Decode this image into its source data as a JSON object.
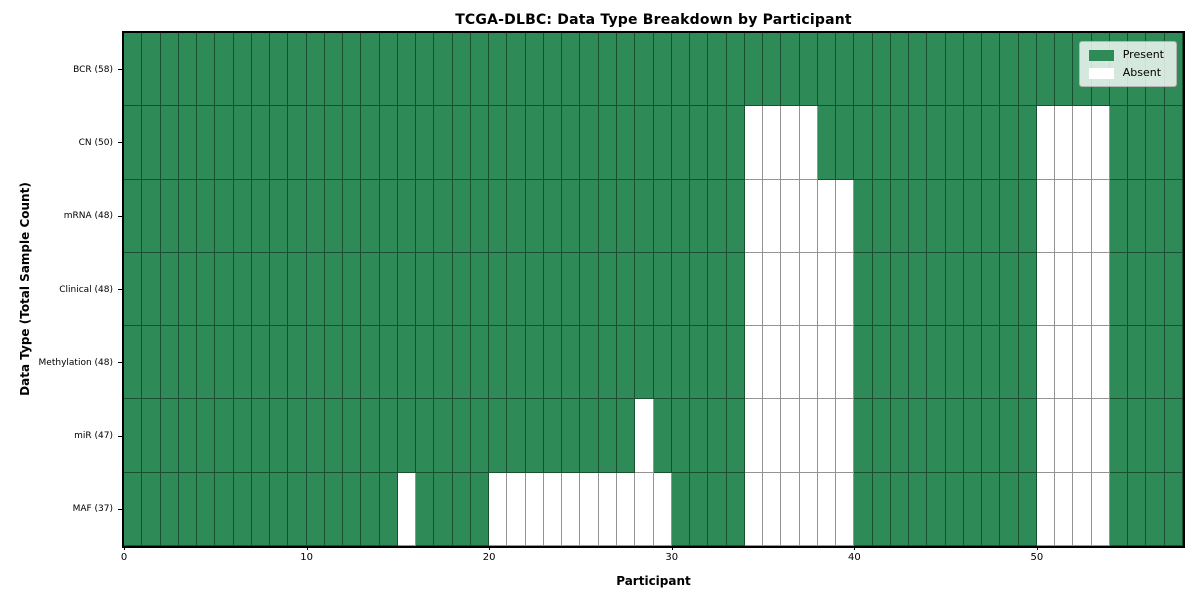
{
  "chart_data": {
    "type": "heatmap",
    "title": "TCGA-DLBC: Data Type Breakdown by Participant",
    "xlabel": "Participant",
    "ylabel": "Data Type (Total Sample Count)",
    "x_axis": {
      "n_columns": 58,
      "ticks": [
        0,
        10,
        20,
        30,
        40,
        50
      ]
    },
    "colors": {
      "present": "#2e8b57",
      "absent": "#ffffff",
      "grid_line": "rgba(0,0,0,0.42)"
    },
    "rows": [
      {
        "label": "BCR (58)",
        "data_type": "BCR",
        "total_sample_count": 58,
        "absent_participants": []
      },
      {
        "label": "CN (50)",
        "data_type": "CN",
        "total_sample_count": 50,
        "absent_participants": [
          34,
          35,
          36,
          37,
          50,
          51,
          52,
          53
        ]
      },
      {
        "label": "mRNA (48)",
        "data_type": "mRNA",
        "total_sample_count": 48,
        "absent_participants": [
          34,
          35,
          36,
          37,
          38,
          39,
          50,
          51,
          52,
          53
        ]
      },
      {
        "label": "Clinical (48)",
        "data_type": "Clinical",
        "total_sample_count": 48,
        "absent_participants": [
          34,
          35,
          36,
          37,
          38,
          39,
          50,
          51,
          52,
          53
        ]
      },
      {
        "label": "Methylation (48)",
        "data_type": "Methylation",
        "total_sample_count": 48,
        "absent_participants": [
          34,
          35,
          36,
          37,
          38,
          39,
          50,
          51,
          52,
          53
        ]
      },
      {
        "label": "miR (47)",
        "data_type": "miR",
        "total_sample_count": 47,
        "absent_participants": [
          28,
          34,
          35,
          36,
          37,
          38,
          39,
          50,
          51,
          52,
          53
        ]
      },
      {
        "label": "MAF (37)",
        "data_type": "MAF",
        "total_sample_count": 37,
        "absent_participants": [
          15,
          20,
          21,
          22,
          23,
          24,
          25,
          26,
          27,
          28,
          29,
          34,
          35,
          36,
          37,
          38,
          39,
          50,
          51,
          52,
          53
        ]
      }
    ],
    "legend": {
      "position": "upper right",
      "items": [
        {
          "label": "Present",
          "color": "#2e8b57"
        },
        {
          "label": "Absent",
          "color": "#ffffff"
        }
      ]
    }
  }
}
